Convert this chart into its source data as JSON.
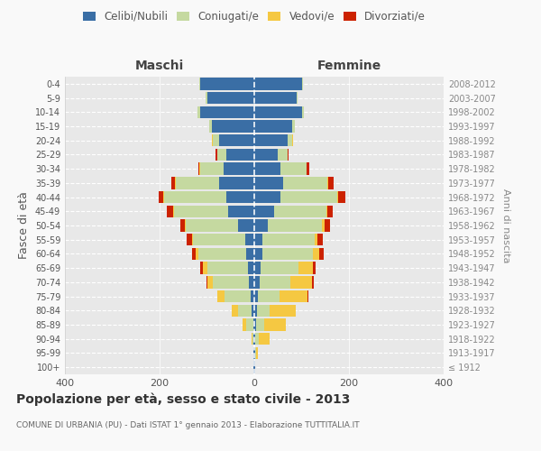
{
  "age_groups": [
    "100+",
    "95-99",
    "90-94",
    "85-89",
    "80-84",
    "75-79",
    "70-74",
    "65-69",
    "60-64",
    "55-59",
    "50-54",
    "45-49",
    "40-44",
    "35-39",
    "30-34",
    "25-29",
    "20-24",
    "15-19",
    "10-14",
    "5-9",
    "0-4"
  ],
  "birth_years": [
    "≤ 1912",
    "1913-1917",
    "1918-1922",
    "1923-1927",
    "1928-1932",
    "1933-1937",
    "1938-1942",
    "1943-1947",
    "1948-1952",
    "1953-1957",
    "1958-1962",
    "1963-1967",
    "1968-1972",
    "1973-1977",
    "1978-1982",
    "1983-1987",
    "1988-1992",
    "1993-1997",
    "1998-2002",
    "2003-2007",
    "2008-2012"
  ],
  "colors": {
    "celibi": "#3a6ea5",
    "coniugati": "#c5d9a0",
    "vedovi": "#f5c842",
    "divorziati": "#cc2200"
  },
  "maschi": {
    "celibi": [
      1,
      1,
      1,
      2,
      5,
      8,
      12,
      14,
      18,
      20,
      35,
      55,
      60,
      75,
      65,
      60,
      75,
      90,
      115,
      100,
      115
    ],
    "coniugati": [
      0,
      1,
      2,
      15,
      30,
      55,
      75,
      85,
      100,
      110,
      110,
      115,
      130,
      90,
      50,
      18,
      12,
      5,
      5,
      3,
      2
    ],
    "vedovi": [
      0,
      0,
      2,
      8,
      12,
      15,
      12,
      10,
      6,
      2,
      2,
      2,
      2,
      2,
      1,
      1,
      2,
      0,
      0,
      0,
      0
    ],
    "divorziati": [
      0,
      0,
      0,
      0,
      0,
      0,
      2,
      5,
      8,
      10,
      10,
      12,
      10,
      8,
      2,
      2,
      0,
      0,
      0,
      0,
      0
    ]
  },
  "femmine": {
    "celibi": [
      1,
      2,
      2,
      3,
      5,
      8,
      12,
      14,
      18,
      18,
      28,
      42,
      55,
      60,
      55,
      50,
      70,
      80,
      100,
      90,
      100
    ],
    "coniugati": [
      0,
      1,
      8,
      18,
      28,
      45,
      65,
      80,
      105,
      110,
      115,
      110,
      120,
      95,
      55,
      20,
      10,
      5,
      4,
      2,
      2
    ],
    "vedovi": [
      0,
      5,
      22,
      45,
      55,
      60,
      45,
      30,
      15,
      5,
      5,
      3,
      2,
      1,
      1,
      0,
      1,
      0,
      0,
      0,
      0
    ],
    "divorziati": [
      0,
      0,
      0,
      0,
      0,
      2,
      3,
      5,
      8,
      12,
      12,
      10,
      15,
      12,
      5,
      2,
      1,
      0,
      0,
      0,
      0
    ]
  },
  "xlim": 400,
  "title": "Popolazione per età, sesso e stato civile - 2013",
  "subtitle": "COMUNE DI URBANIA (PU) - Dati ISTAT 1° gennaio 2013 - Elaborazione TUTTITALIA.IT",
  "ylabel_left": "Fasce di età",
  "ylabel_right": "Anni di nascita",
  "xlabel_maschi": "Maschi",
  "xlabel_femmine": "Femmine",
  "legend_labels": [
    "Celibi/Nubili",
    "Coniugati/e",
    "Vedovi/e",
    "Divorziati/e"
  ],
  "background_color": "#f9f9f9",
  "plot_background": "#e8e8e8"
}
